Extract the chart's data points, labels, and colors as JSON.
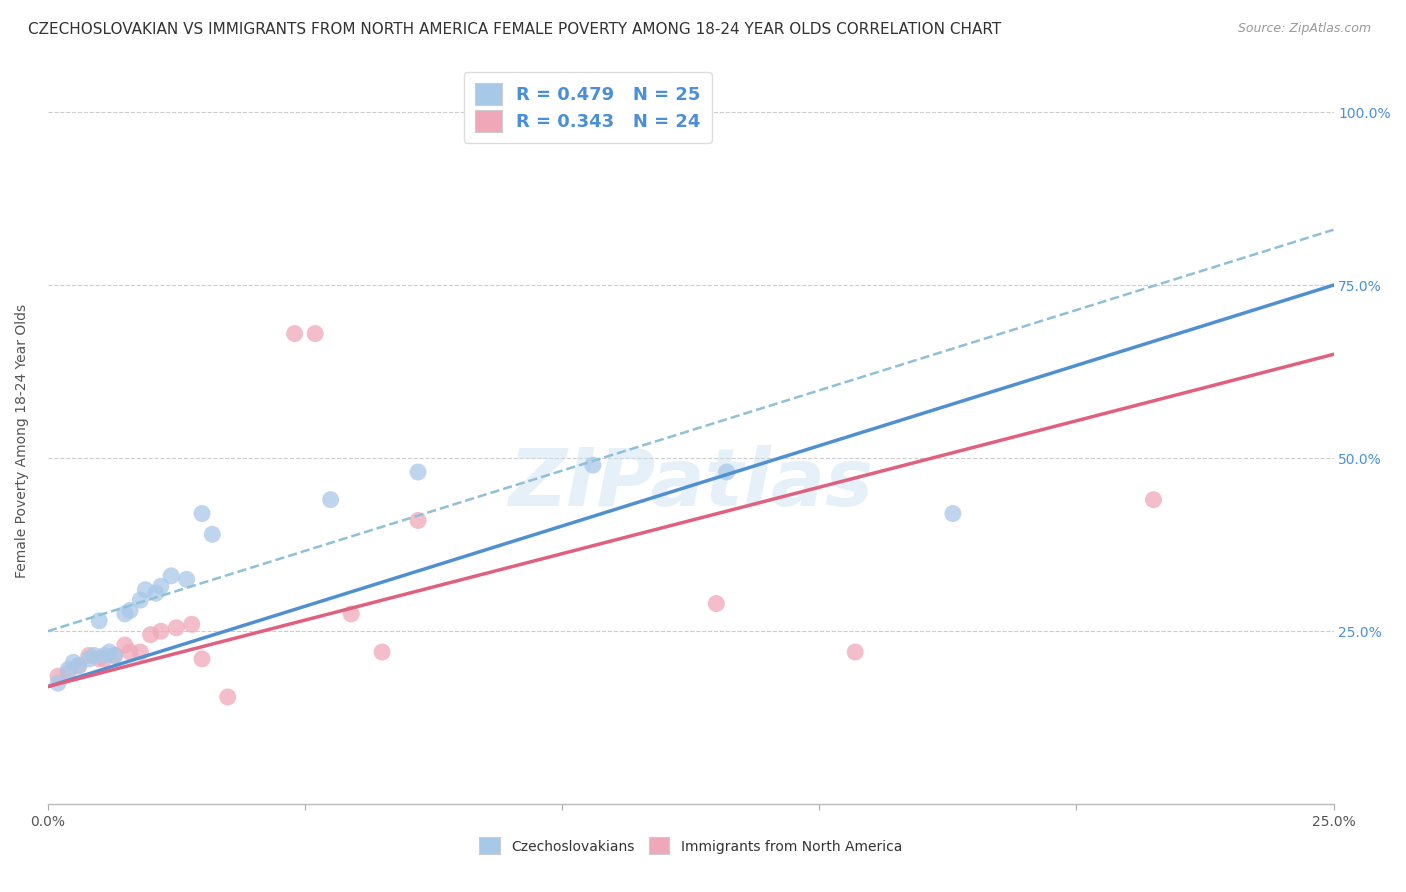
{
  "title": "CZECHOSLOVAKIAN VS IMMIGRANTS FROM NORTH AMERICA FEMALE POVERTY AMONG 18-24 YEAR OLDS CORRELATION CHART",
  "source": "Source: ZipAtlas.com",
  "ylabel": "Female Poverty Among 18-24 Year Olds",
  "xlim": [
    0.0,
    0.25
  ],
  "ylim": [
    0.0,
    1.05
  ],
  "x_ticks": [
    0.0,
    0.05,
    0.1,
    0.15,
    0.2,
    0.25
  ],
  "x_tick_labels": [
    "0.0%",
    "",
    "",
    "",
    "",
    "25.0%"
  ],
  "y_ticks": [
    0.0,
    0.25,
    0.5,
    0.75,
    1.0
  ],
  "y_tick_labels": [
    "",
    "25.0%",
    "50.0%",
    "75.0%",
    "100.0%"
  ],
  "background_color": "#ffffff",
  "watermark": "ZIPatlas",
  "blue_R": 0.479,
  "blue_N": 25,
  "pink_R": 0.343,
  "pink_N": 24,
  "blue_color": "#a8c8e8",
  "pink_color": "#f0a8b8",
  "blue_line_color": "#5090d0",
  "pink_line_color": "#e06080",
  "dashed_line_color": "#90c0d8",
  "blue_x": [
    0.002,
    0.004,
    0.005,
    0.006,
    0.008,
    0.009,
    0.01,
    0.011,
    0.012,
    0.013,
    0.015,
    0.016,
    0.018,
    0.019,
    0.021,
    0.022,
    0.024,
    0.027,
    0.03,
    0.032,
    0.055,
    0.072,
    0.106,
    0.132,
    0.176
  ],
  "blue_y": [
    0.175,
    0.195,
    0.205,
    0.2,
    0.21,
    0.215,
    0.265,
    0.215,
    0.22,
    0.215,
    0.275,
    0.28,
    0.295,
    0.31,
    0.305,
    0.315,
    0.33,
    0.325,
    0.42,
    0.39,
    0.44,
    0.48,
    0.49,
    0.48,
    0.42
  ],
  "pink_x": [
    0.002,
    0.004,
    0.006,
    0.008,
    0.01,
    0.011,
    0.013,
    0.015,
    0.016,
    0.018,
    0.02,
    0.022,
    0.025,
    0.028,
    0.03,
    0.035,
    0.048,
    0.052,
    0.059,
    0.065,
    0.072,
    0.13,
    0.157,
    0.215
  ],
  "pink_y": [
    0.185,
    0.19,
    0.2,
    0.215,
    0.21,
    0.21,
    0.215,
    0.23,
    0.22,
    0.22,
    0.245,
    0.25,
    0.255,
    0.26,
    0.21,
    0.155,
    0.68,
    0.68,
    0.275,
    0.22,
    0.41,
    0.29,
    0.22,
    0.44
  ],
  "title_fontsize": 11,
  "axis_label_fontsize": 10,
  "tick_fontsize": 10,
  "legend_fontsize": 13
}
